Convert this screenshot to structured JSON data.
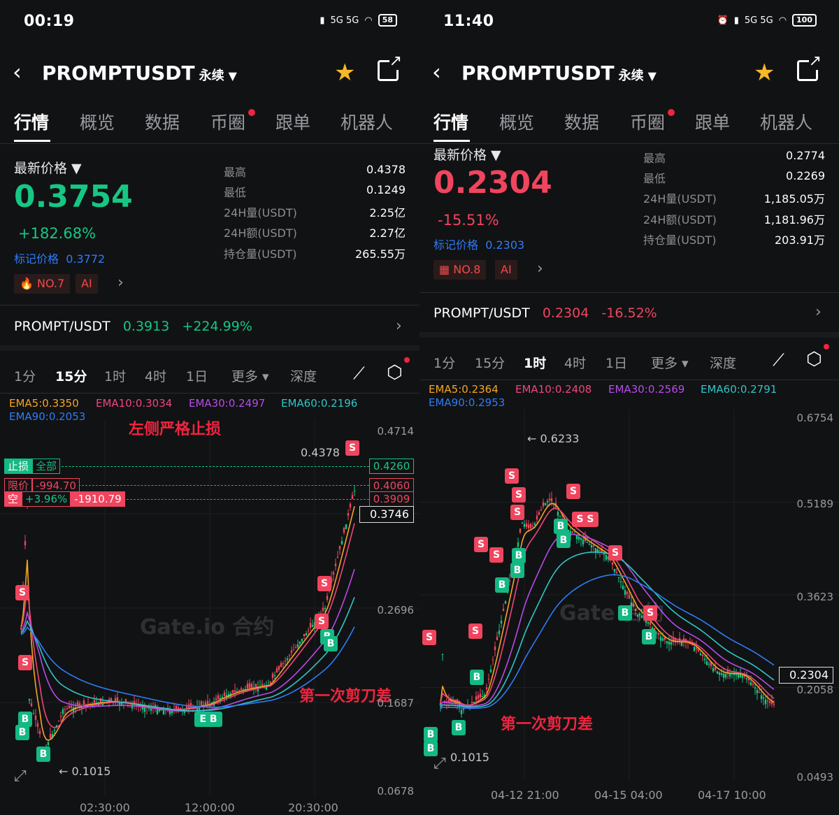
{
  "left": {
    "status": {
      "time": "00:19",
      "signal": "5G 5G",
      "battery": "58"
    },
    "header": {
      "symbol": "PROMPTUSDT",
      "perp": "永续"
    },
    "tabs": [
      "行情",
      "概览",
      "数据",
      "币圈",
      "跟单",
      "机器人"
    ],
    "price": {
      "label": "最新价格",
      "value": "0.3754",
      "change": "+182.68%",
      "mark_label": "标记价格",
      "mark_value": "0.3772",
      "rank_badge": "NO.7",
      "ai_badge": "AI"
    },
    "stats": [
      {
        "label": "最高",
        "value": "0.4378"
      },
      {
        "label": "最低",
        "value": "0.1249"
      },
      {
        "label": "24H量(USDT)",
        "value": "2.25亿"
      },
      {
        "label": "24H额(USDT)",
        "value": "2.27亿"
      },
      {
        "label": "持仓量(USDT)",
        "value": "265.55万"
      }
    ],
    "spot": {
      "pair": "PROMPT/USDT",
      "price": "0.3913",
      "change": "+224.99%"
    },
    "intervals": [
      "1分",
      "15分",
      "1时",
      "4时",
      "1日",
      "更多",
      "深度"
    ],
    "active_interval": "15分",
    "ema": [
      {
        "label": "EMA5:0.3350",
        "color": "#f5a524"
      },
      {
        "label": "EMA10:0.3034",
        "color": "#f0457a"
      },
      {
        "label": "EMA30:0.2497",
        "color": "#b74be8"
      },
      {
        "label": "EMA60:0.2196",
        "color": "#2fc6c6"
      },
      {
        "label": "EMA90:0.2053",
        "color": "#2e7cf6"
      }
    ],
    "axis": [
      "0.4714",
      "0.2696",
      "0.1687",
      "0.0678"
    ],
    "time_axis": [
      "02:30:00",
      "12:00:00",
      "20:30:00"
    ],
    "annotation_top": "左侧严格止损",
    "annotation_bottom": "第一次剪刀差",
    "orders": {
      "stoploss_label": "止损",
      "stoploss_all": "全部",
      "limit_label": "限价",
      "limit_value": "-994.70",
      "short_label": "空",
      "short_pct": "+3.96%",
      "short_pnl": "-1910.79",
      "sl_price": "0.4260",
      "limit_price": "0.4060",
      "entry_price": "0.3909",
      "current_price": "0.3746"
    },
    "high_label": "0.4378",
    "low_label": "← 0.1015",
    "watermark": "Gate.io 合约"
  },
  "right": {
    "status": {
      "time": "11:40",
      "signal": "5G 5G",
      "battery": "100"
    },
    "header": {
      "symbol": "PROMPTUSDT",
      "perp": "永续"
    },
    "tabs": [
      "行情",
      "概览",
      "数据",
      "币圈",
      "跟单",
      "机器人"
    ],
    "price": {
      "label": "最新价格",
      "value": "0.2304",
      "change": "-15.51%",
      "mark_label": "标记价格",
      "mark_value": "0.2303",
      "rank_badge": "NO.8",
      "ai_badge": "AI"
    },
    "stats": [
      {
        "label": "最高",
        "value": "0.2774"
      },
      {
        "label": "最低",
        "value": "0.2269"
      },
      {
        "label": "24H量(USDT)",
        "value": "1,185.05万"
      },
      {
        "label": "24H额(USDT)",
        "value": "1,181.96万"
      },
      {
        "label": "持仓量(USDT)",
        "value": "203.91万"
      }
    ],
    "spot": {
      "pair": "PROMPT/USDT",
      "price": "0.2304",
      "change": "-16.52%"
    },
    "intervals": [
      "1分",
      "15分",
      "1时",
      "4时",
      "1日",
      "更多",
      "深度"
    ],
    "active_interval": "1时",
    "ema": [
      {
        "label": "EMA5:0.2364",
        "color": "#f5a524"
      },
      {
        "label": "EMA10:0.2408",
        "color": "#f0457a"
      },
      {
        "label": "EMA30:0.2569",
        "color": "#b74be8"
      },
      {
        "label": "EMA60:0.2791",
        "color": "#2fc6c6"
      },
      {
        "label": "EMA90:0.2953",
        "color": "#2e7cf6"
      }
    ],
    "axis": [
      "0.6754",
      "0.5189",
      "0.3623",
      "0.2058",
      "0.0493"
    ],
    "time_axis": [
      "04-12 21:00",
      "04-15 04:00",
      "04-17 10:00"
    ],
    "annotation_bottom": "第一次剪刀差",
    "current_price": "0.2304",
    "high_label": "← 0.6233",
    "low_label": "0.1015",
    "watermark": "Gate 合约"
  },
  "colors": {
    "up": "#16c784",
    "down": "#f0243f",
    "link": "#2e7cf6",
    "bg": "#111214"
  }
}
